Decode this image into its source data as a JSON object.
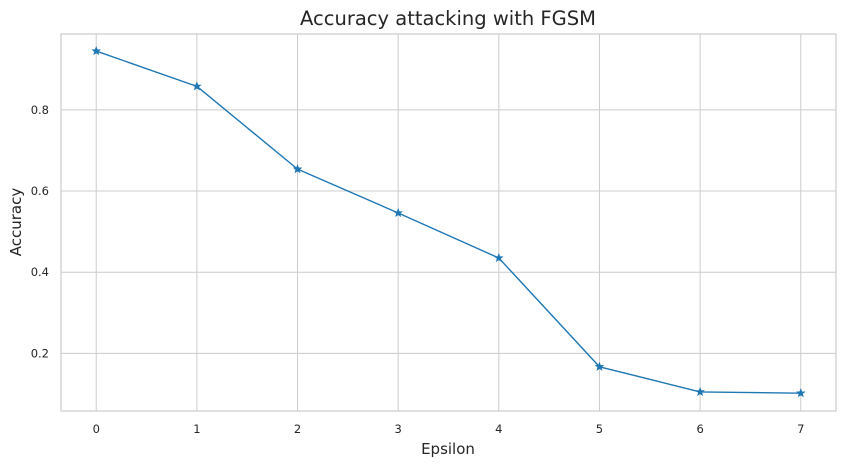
{
  "chart_data": {
    "type": "line",
    "title": "Accuracy attacking with FGSM",
    "xlabel": "Epsilon",
    "ylabel": "Accuracy",
    "x": [
      0,
      1,
      2,
      3,
      4,
      5,
      6,
      7
    ],
    "series": [
      {
        "values": [
          0.945,
          0.858,
          0.654,
          0.546,
          0.435,
          0.167,
          0.105,
          0.102
        ],
        "color": "#1f77b4",
        "marker": "star"
      }
    ],
    "xticks": [
      "0",
      "1",
      "2",
      "3",
      "4",
      "5",
      "6",
      "7"
    ],
    "yticks": [
      "0.2",
      "0.4",
      "0.6",
      "0.8"
    ],
    "xlim": [
      -0.35,
      7.35
    ],
    "ylim": [
      0.058,
      0.987
    ],
    "grid": true,
    "legend": "none"
  }
}
